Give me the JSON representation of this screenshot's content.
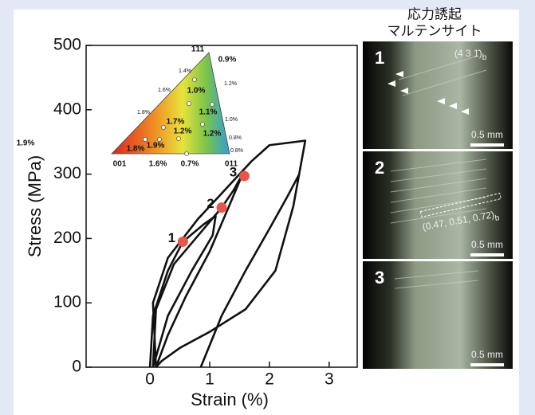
{
  "chart_data": {
    "type": "line",
    "xlabel": "Strain (%)",
    "ylabel": "Stress (MPa)",
    "xlim": [
      -1.07,
      3.47
    ],
    "ylim": [
      0,
      500
    ],
    "xticks": [
      0,
      1,
      2,
      3
    ],
    "yticks": [
      0,
      100,
      200,
      300,
      400,
      500
    ],
    "grid": false,
    "color": "#111111",
    "series": [
      {
        "x": [
          0.1,
          0.05,
          0.3,
          0.8,
          1.3,
          1.7,
          2.0,
          2.6,
          2.4,
          2.1,
          1.6,
          1.0,
          0.5,
          0.2,
          0.1
        ],
        "y": [
          0,
          100,
          170,
          230,
          280,
          320,
          345,
          352,
          250,
          150,
          90,
          55,
          30,
          10,
          0
        ]
      },
      {
        "x": [
          0.05,
          0.1,
          0.4,
          0.9,
          1.2,
          1.4,
          1.55,
          1.3,
          1.0,
          0.6,
          0.3,
          0.1
        ],
        "y": [
          0,
          90,
          160,
          215,
          248,
          275,
          300,
          245,
          180,
          110,
          50,
          0
        ]
      },
      {
        "x": [
          0.0,
          0.05,
          0.3,
          0.55,
          0.9,
          1.1,
          1.05,
          0.7,
          0.3,
          0.05
        ],
        "y": [
          0,
          80,
          150,
          195,
          222,
          235,
          205,
          150,
          80,
          0
        ]
      },
      {
        "x": [
          0.85,
          1.2,
          1.6,
          2.0,
          2.3,
          2.5
        ],
        "y": [
          0,
          80,
          150,
          215,
          265,
          300
        ]
      }
    ],
    "annotations": [
      {
        "label": "1",
        "x": 0.55,
        "y": 195,
        "color": "#e8554a"
      },
      {
        "label": "2",
        "x": 1.2,
        "y": 248,
        "color": "#e8554a"
      },
      {
        "label": "3",
        "x": 1.58,
        "y": 297,
        "color": "#e8554a"
      }
    ],
    "inset_labels": [
      "1̄11",
      "0.9%",
      "1.4%",
      "1.0%",
      "1.2%",
      "1.6%",
      "1.8%",
      "1.7%",
      "1.1%",
      "1.0%",
      "1.2%",
      "1.2%",
      "0.8%",
      "1.9%",
      "1.8%",
      "1.9%",
      "0.8%",
      "001",
      "1.6%",
      "0.7%",
      "011"
    ]
  },
  "header": [
    "応力誘起",
    "マルテンサイト"
  ],
  "panels": [
    {
      "label": "1",
      "plane": "(4 3 1̄)",
      "plane_sub": "b",
      "scale": "0.5 mm"
    },
    {
      "label": "2",
      "plane": "(0.47, 0.51, 0.72)",
      "plane_sub": "b",
      "scale": "0.5 mm"
    },
    {
      "label": "3",
      "scale": "0.5 mm"
    }
  ]
}
